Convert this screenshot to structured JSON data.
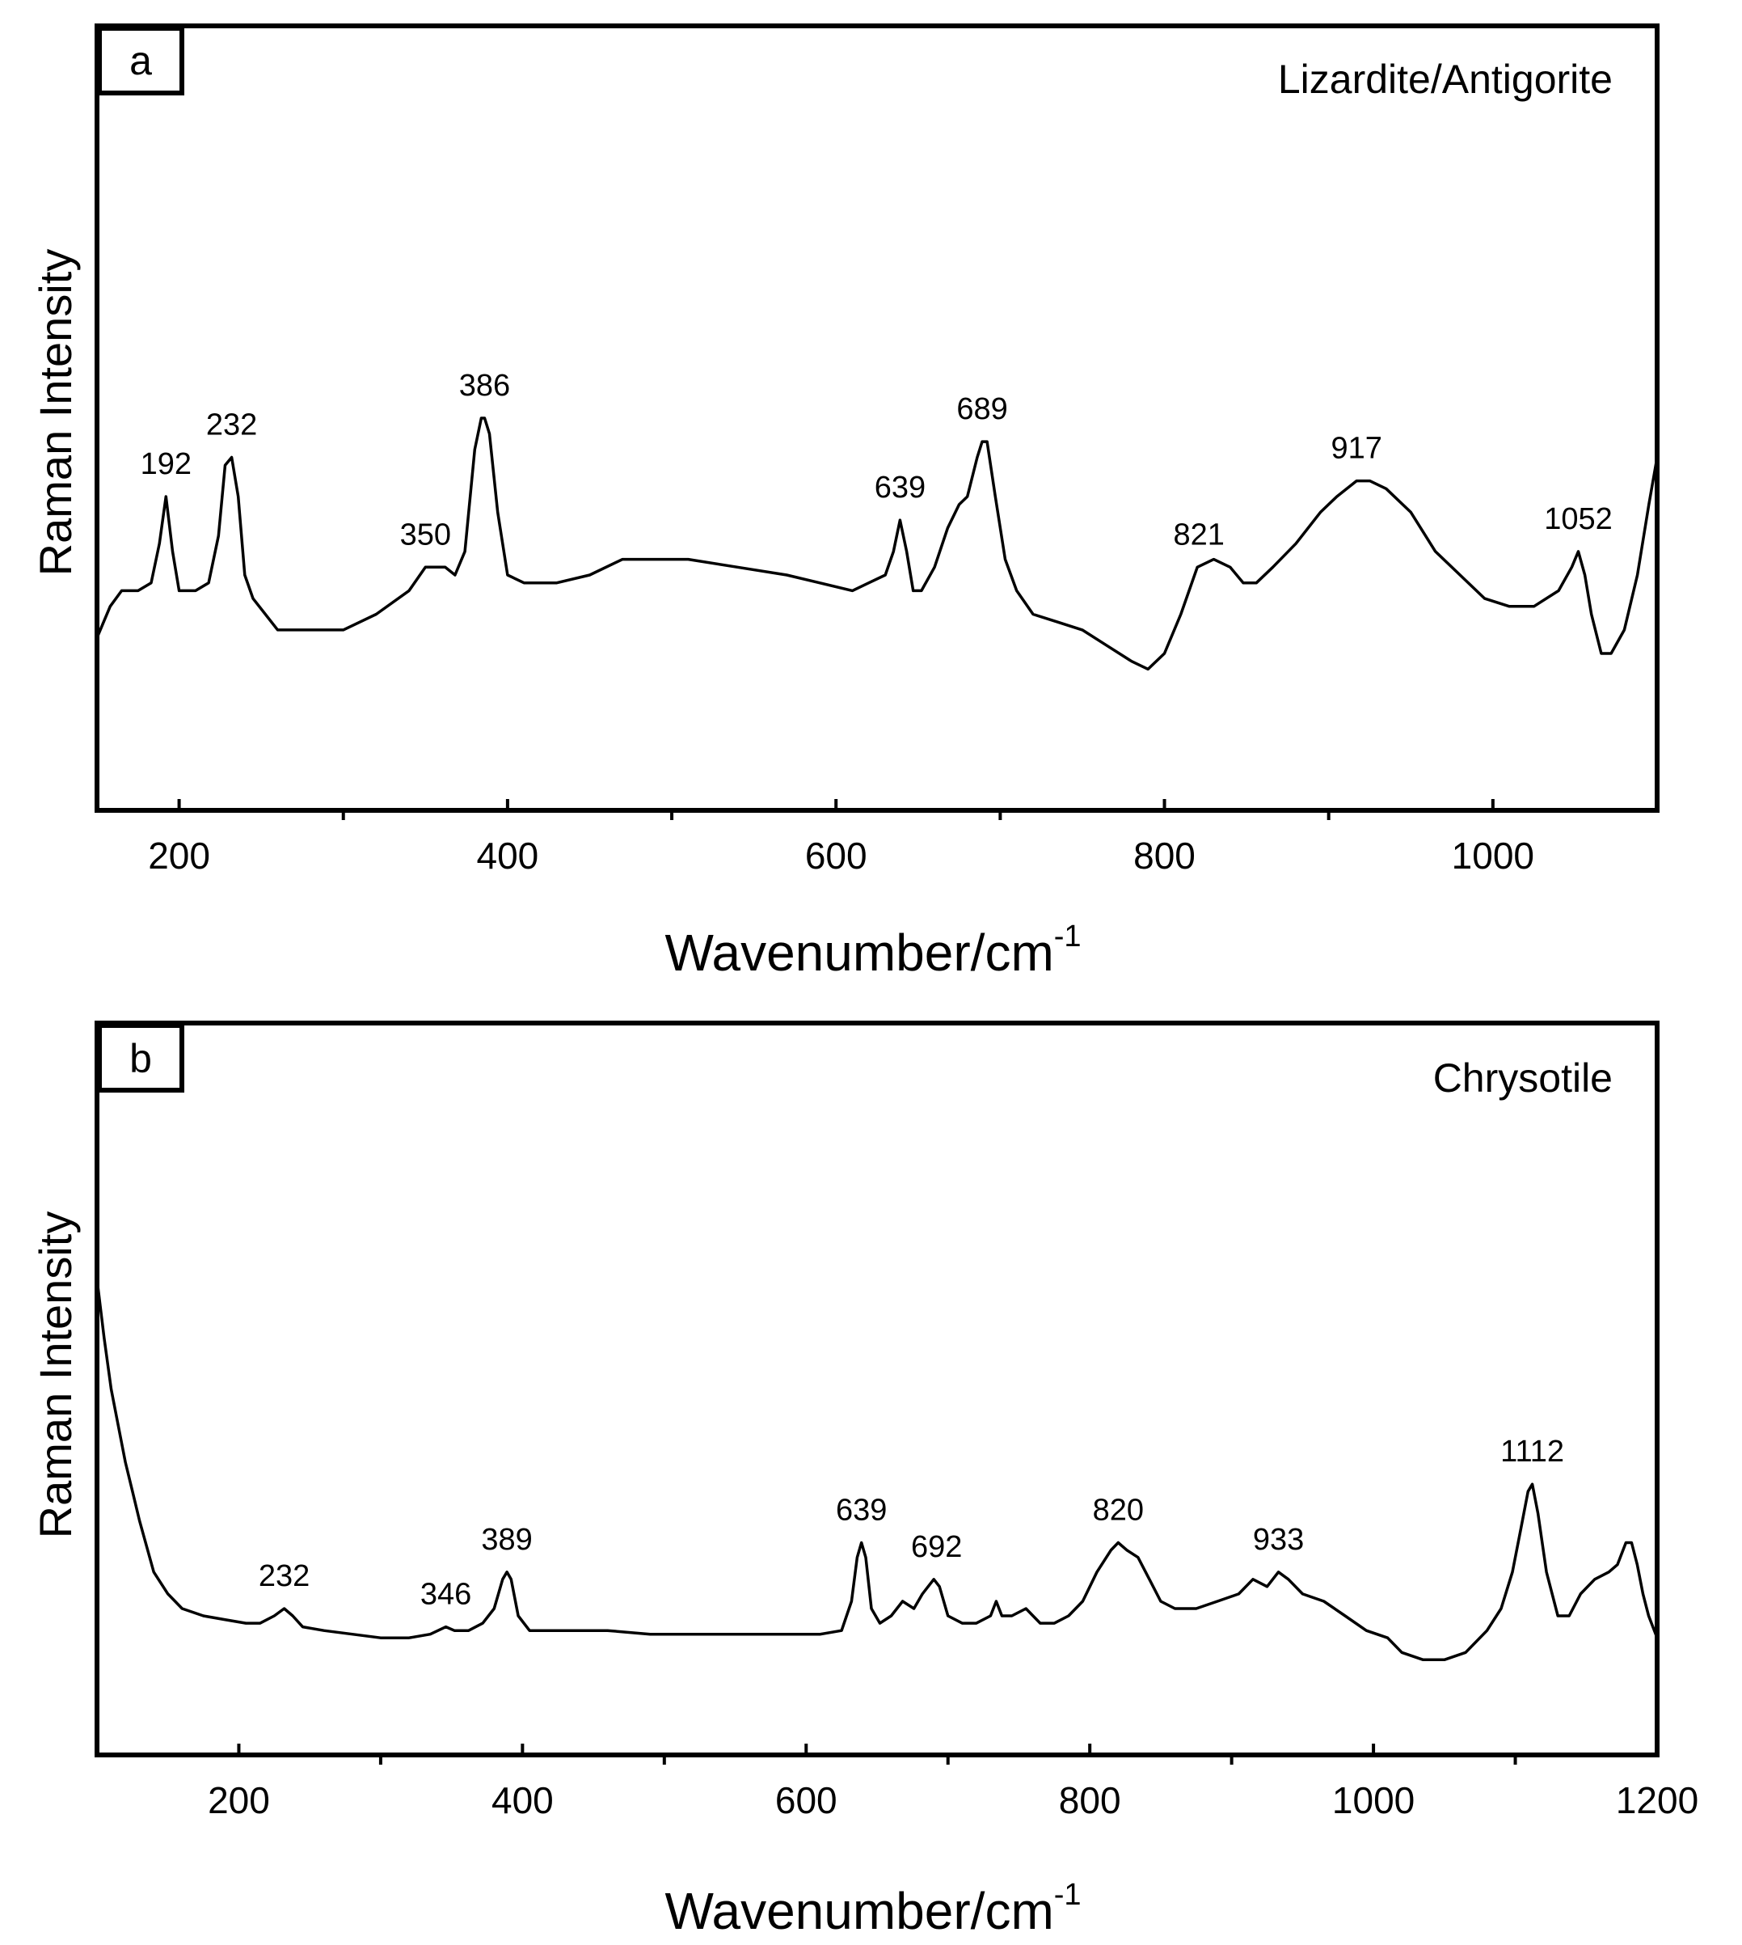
{
  "chart_data": [
    {
      "type": "line",
      "panel_label": "a",
      "title": "Lizardite/Antigorite",
      "xlabel_main": "Wavenumber/cm",
      "xlabel_sup": "-1",
      "ylabel": "Raman Intensity",
      "xlim": [
        150,
        1100
      ],
      "ylim": [
        0,
        100
      ],
      "major_ticks": [
        200,
        400,
        600,
        800,
        1000
      ],
      "tick_labels": [
        "200",
        "400",
        "600",
        "800",
        "1000"
      ],
      "minor_ticks": [
        300,
        500,
        700,
        900
      ],
      "series": [
        {
          "name": "Lizardite/Antigorite",
          "points": [
            [
              150,
              22
            ],
            [
              158,
              26
            ],
            [
              165,
              28
            ],
            [
              175,
              28
            ],
            [
              183,
              29
            ],
            [
              188,
              34
            ],
            [
              192,
              40
            ],
            [
              196,
              33
            ],
            [
              200,
              28
            ],
            [
              210,
              28
            ],
            [
              218,
              29
            ],
            [
              224,
              35
            ],
            [
              228,
              44
            ],
            [
              232,
              45
            ],
            [
              236,
              40
            ],
            [
              240,
              30
            ],
            [
              245,
              27
            ],
            [
              260,
              23
            ],
            [
              280,
              23
            ],
            [
              300,
              23
            ],
            [
              320,
              25
            ],
            [
              340,
              28
            ],
            [
              350,
              31
            ],
            [
              356,
              31
            ],
            [
              362,
              31
            ],
            [
              368,
              30
            ],
            [
              374,
              33
            ],
            [
              380,
              46
            ],
            [
              384,
              50
            ],
            [
              386,
              50
            ],
            [
              389,
              48
            ],
            [
              394,
              38
            ],
            [
              400,
              30
            ],
            [
              410,
              29
            ],
            [
              430,
              29
            ],
            [
              450,
              30
            ],
            [
              470,
              32
            ],
            [
              490,
              32
            ],
            [
              510,
              32
            ],
            [
              540,
              31
            ],
            [
              570,
              30
            ],
            [
              590,
              29
            ],
            [
              610,
              28
            ],
            [
              620,
              29
            ],
            [
              630,
              30
            ],
            [
              635,
              33
            ],
            [
              639,
              37
            ],
            [
              643,
              33
            ],
            [
              647,
              28
            ],
            [
              652,
              28
            ],
            [
              660,
              31
            ],
            [
              668,
              36
            ],
            [
              675,
              39
            ],
            [
              680,
              40
            ],
            [
              686,
              45
            ],
            [
              689,
              47
            ],
            [
              692,
              47
            ],
            [
              697,
              40
            ],
            [
              703,
              32
            ],
            [
              710,
              28
            ],
            [
              720,
              25
            ],
            [
              735,
              24
            ],
            [
              750,
              23
            ],
            [
              765,
              21
            ],
            [
              780,
              19
            ],
            [
              790,
              18
            ],
            [
              800,
              20
            ],
            [
              810,
              25
            ],
            [
              820,
              31
            ],
            [
              830,
              32
            ],
            [
              840,
              31
            ],
            [
              848,
              29
            ],
            [
              856,
              29
            ],
            [
              866,
              31
            ],
            [
              880,
              34
            ],
            [
              895,
              38
            ],
            [
              905,
              40
            ],
            [
              917,
              42
            ],
            [
              925,
              42
            ],
            [
              935,
              41
            ],
            [
              950,
              38
            ],
            [
              965,
              33
            ],
            [
              980,
              30
            ],
            [
              995,
              27
            ],
            [
              1010,
              26
            ],
            [
              1025,
              26
            ],
            [
              1040,
              28
            ],
            [
              1048,
              31
            ],
            [
              1052,
              33
            ],
            [
              1056,
              30
            ],
            [
              1060,
              25
            ],
            [
              1066,
              20
            ],
            [
              1072,
              20
            ],
            [
              1080,
              23
            ],
            [
              1088,
              30
            ],
            [
              1095,
              39
            ],
            [
              1100,
              45
            ]
          ]
        }
      ],
      "peak_labels": [
        {
          "x": 192,
          "y": 40,
          "label": "192"
        },
        {
          "x": 232,
          "y": 45,
          "label": "232"
        },
        {
          "x": 350,
          "y": 31,
          "label": "350"
        },
        {
          "x": 386,
          "y": 50,
          "label": "386"
        },
        {
          "x": 639,
          "y": 37,
          "label": "639"
        },
        {
          "x": 689,
          "y": 47,
          "label": "689"
        },
        {
          "x": 821,
          "y": 31,
          "label": "821"
        },
        {
          "x": 917,
          "y": 42,
          "label": "917"
        },
        {
          "x": 1052,
          "y": 33,
          "label": "1052"
        }
      ]
    },
    {
      "type": "line",
      "panel_label": "b",
      "title": "Chrysotile",
      "xlabel_main": "Wavenumber/cm",
      "xlabel_sup": "-1",
      "ylabel": "Raman Intensity",
      "xlim": [
        100,
        1200
      ],
      "ylim": [
        0,
        100
      ],
      "major_ticks": [
        200,
        400,
        600,
        800,
        1000,
        1200
      ],
      "tick_labels": [
        "200",
        "400",
        "600",
        "800",
        "1000",
        "1200"
      ],
      "minor_ticks": [
        300,
        500,
        700,
        900,
        1100
      ],
      "series": [
        {
          "name": "Chrysotile",
          "points": [
            [
              100,
              65
            ],
            [
              105,
              57
            ],
            [
              110,
              50
            ],
            [
              115,
              45
            ],
            [
              120,
              40
            ],
            [
              125,
              36
            ],
            [
              130,
              32
            ],
            [
              140,
              25
            ],
            [
              150,
              22
            ],
            [
              160,
              20
            ],
            [
              175,
              19
            ],
            [
              190,
              18.5
            ],
            [
              205,
              18
            ],
            [
              215,
              18
            ],
            [
              225,
              19
            ],
            [
              232,
              20
            ],
            [
              238,
              19
            ],
            [
              245,
              17.5
            ],
            [
              260,
              17
            ],
            [
              280,
              16.5
            ],
            [
              300,
              16
            ],
            [
              320,
              16
            ],
            [
              335,
              16.5
            ],
            [
              346,
              17.5
            ],
            [
              352,
              17
            ],
            [
              362,
              17
            ],
            [
              372,
              18
            ],
            [
              380,
              20
            ],
            [
              386,
              24
            ],
            [
              389,
              25
            ],
            [
              392,
              24
            ],
            [
              397,
              19
            ],
            [
              405,
              17
            ],
            [
              430,
              17
            ],
            [
              460,
              17
            ],
            [
              490,
              16.5
            ],
            [
              520,
              16.5
            ],
            [
              560,
              16.5
            ],
            [
              590,
              16.5
            ],
            [
              610,
              16.5
            ],
            [
              625,
              17
            ],
            [
              632,
              21
            ],
            [
              636,
              27
            ],
            [
              639,
              29
            ],
            [
              642,
              27
            ],
            [
              646,
              20
            ],
            [
              652,
              18
            ],
            [
              660,
              19
            ],
            [
              668,
              21
            ],
            [
              676,
              20
            ],
            [
              682,
              22
            ],
            [
              690,
              24
            ],
            [
              694,
              23
            ],
            [
              700,
              19
            ],
            [
              710,
              18
            ],
            [
              720,
              18
            ],
            [
              730,
              19
            ],
            [
              734,
              21
            ],
            [
              738,
              19
            ],
            [
              745,
              19
            ],
            [
              755,
              20
            ],
            [
              765,
              18
            ],
            [
              775,
              18
            ],
            [
              785,
              19
            ],
            [
              795,
              21
            ],
            [
              805,
              25
            ],
            [
              815,
              28
            ],
            [
              820,
              29
            ],
            [
              826,
              28
            ],
            [
              834,
              27
            ],
            [
              842,
              24
            ],
            [
              850,
              21
            ],
            [
              860,
              20
            ],
            [
              875,
              20
            ],
            [
              890,
              21
            ],
            [
              905,
              22
            ],
            [
              915,
              24
            ],
            [
              925,
              23
            ],
            [
              933,
              25
            ],
            [
              940,
              24
            ],
            [
              950,
              22
            ],
            [
              965,
              21
            ],
            [
              980,
              19
            ],
            [
              995,
              17
            ],
            [
              1010,
              16
            ],
            [
              1020,
              14
            ],
            [
              1035,
              13
            ],
            [
              1050,
              13
            ],
            [
              1065,
              14
            ],
            [
              1080,
              17
            ],
            [
              1090,
              20
            ],
            [
              1098,
              25
            ],
            [
              1104,
              31
            ],
            [
              1109,
              36
            ],
            [
              1112,
              37
            ],
            [
              1116,
              33
            ],
            [
              1122,
              25
            ],
            [
              1130,
              19
            ],
            [
              1138,
              19
            ],
            [
              1146,
              22
            ],
            [
              1156,
              24
            ],
            [
              1166,
              25
            ],
            [
              1172,
              26
            ],
            [
              1178,
              29
            ],
            [
              1182,
              29
            ],
            [
              1186,
              26
            ],
            [
              1190,
              22
            ],
            [
              1194,
              19
            ],
            [
              1200,
              16
            ]
          ]
        }
      ],
      "peak_labels": [
        {
          "x": 232,
          "y": 20,
          "label": "232"
        },
        {
          "x": 346,
          "y": 17.5,
          "label": "346"
        },
        {
          "x": 389,
          "y": 25,
          "label": "389"
        },
        {
          "x": 639,
          "y": 29,
          "label": "639"
        },
        {
          "x": 692,
          "y": 24,
          "label": "692"
        },
        {
          "x": 820,
          "y": 29,
          "label": "820"
        },
        {
          "x": 933,
          "y": 25,
          "label": "933"
        },
        {
          "x": 1112,
          "y": 37,
          "label": "1112"
        }
      ]
    }
  ]
}
